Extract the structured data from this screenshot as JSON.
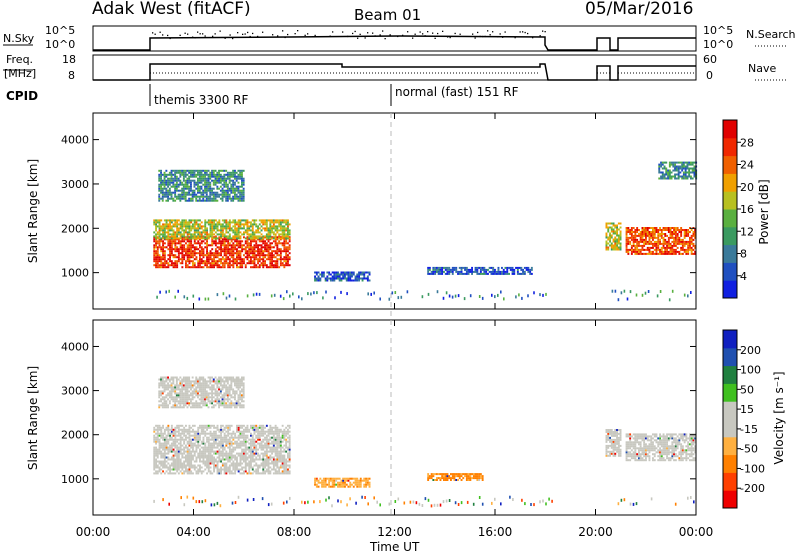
{
  "header": {
    "station": "Adak West (fitACF)",
    "beam": "Beam 01",
    "date": "05/Mar/2016"
  },
  "strips": {
    "nsky_label": "N.Sky",
    "nsky_top_tick": "10^5",
    "nsky_bottom_tick": "10^0",
    "nsearch_label": "N.Search",
    "nsearch_top_tick": "10^5",
    "nsearch_bottom_tick": "10^0",
    "freq_label_1": "Freq.",
    "freq_label_2": "[MHz]",
    "freq_top_tick": "18",
    "freq_bottom_tick": "8",
    "nave_label": "Nave",
    "nave_top_tick": "60",
    "nave_bottom_tick": "0",
    "cpid_label": "CPID",
    "cpid_mode_1": "themis 3300 RF",
    "cpid_mode_2": "normal (fast) 151 RF"
  },
  "colors": {
    "accent_dash": "#bbbbbb",
    "power_scale": [
      "#1020e0",
      "#2050c0",
      "#3a7a9a",
      "#3a9a60",
      "#5ab040",
      "#b8c020",
      "#f0a000",
      "#f06000",
      "#f02800",
      "#e00000"
    ],
    "velocity_scale": [
      "#ee0000",
      "#ff4000",
      "#ff8000",
      "#ffb040",
      "#c8c8c0",
      "#c8c8c0",
      "#40c020",
      "#208040",
      "#2050b0",
      "#1020c0"
    ]
  },
  "chart_data": [
    {
      "type": "heatmap",
      "name": "power",
      "xlabel": "",
      "ylabel": "Slant Range [km]",
      "xlim": [
        0,
        24
      ],
      "ylim": [
        180,
        4600
      ],
      "yticks": [
        "1000",
        "2000",
        "3000",
        "4000"
      ],
      "colorbar_label": "Power [dB]",
      "colorbar_ticks": [
        "4",
        "8",
        "12",
        "16",
        "20",
        "24",
        "28"
      ],
      "colorbar_range": [
        0,
        32
      ],
      "regions": [
        {
          "t": [
            2.4,
            7.8
          ],
          "r": [
            1100,
            1800
          ],
          "level": 0.85
        },
        {
          "t": [
            2.4,
            7.8
          ],
          "r": [
            1750,
            2200
          ],
          "level": 0.55
        },
        {
          "t": [
            2.6,
            6.0
          ],
          "r": [
            2600,
            3300
          ],
          "level": 0.3
        },
        {
          "t": [
            8.8,
            11.0
          ],
          "r": [
            800,
            1000
          ],
          "level": 0.15
        },
        {
          "t": [
            13.3,
            17.5
          ],
          "r": [
            950,
            1100
          ],
          "level": 0.15
        },
        {
          "t": [
            20.4,
            21.0
          ],
          "r": [
            1500,
            2100
          ],
          "level": 0.55
        },
        {
          "t": [
            21.2,
            24.0
          ],
          "r": [
            1400,
            2000
          ],
          "level": 0.8
        },
        {
          "t": [
            22.5,
            24.0
          ],
          "r": [
            3100,
            3500
          ],
          "level": 0.3
        }
      ]
    },
    {
      "type": "heatmap",
      "name": "velocity",
      "xlabel": "Time UT",
      "ylabel": "Slant Range [km]",
      "xlim": [
        0,
        24
      ],
      "ylim": [
        180,
        4600
      ],
      "xticks": [
        "00:00",
        "04:00",
        "08:00",
        "12:00",
        "16:00",
        "20:00",
        "00:00"
      ],
      "yticks": [
        "1000",
        "2000",
        "3000",
        "4000"
      ],
      "colorbar_label": "Velocity [m s⁻¹]",
      "colorbar_ticks": [
        "200",
        "100",
        "50",
        "15",
        "-15",
        "-50",
        "-100",
        "-200"
      ],
      "colorbar_range": [
        -250,
        250
      ],
      "regions": [
        {
          "t": [
            2.4,
            7.8
          ],
          "r": [
            1100,
            2200
          ],
          "level": 0.0
        },
        {
          "t": [
            2.6,
            6.0
          ],
          "r": [
            2600,
            3300
          ],
          "level": 0.0
        },
        {
          "t": [
            8.8,
            11.0
          ],
          "r": [
            800,
            1000
          ],
          "level": -0.4
        },
        {
          "t": [
            13.3,
            15.5
          ],
          "r": [
            950,
            1100
          ],
          "level": -0.5
        },
        {
          "t": [
            20.4,
            21.0
          ],
          "r": [
            1500,
            2100
          ],
          "level": 0.0
        },
        {
          "t": [
            21.2,
            24.0
          ],
          "r": [
            1400,
            2000
          ],
          "level": 0.0
        }
      ]
    }
  ]
}
